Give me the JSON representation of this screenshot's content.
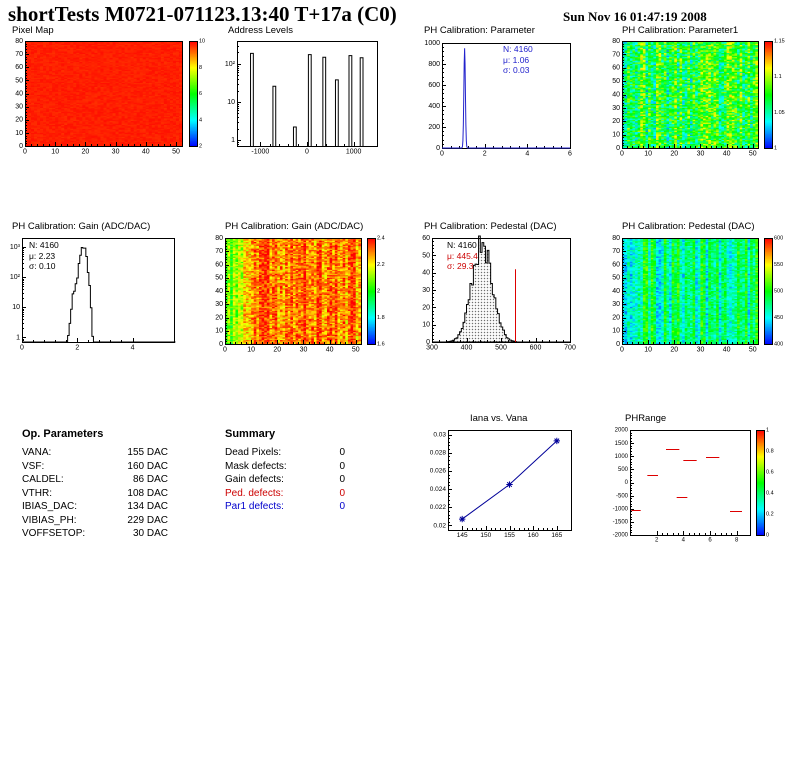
{
  "header": {
    "title": "shortTests M0721-071123.13:40 T+17a (C0)",
    "date": "Sun Nov 16 01:47:19 2008"
  },
  "op_parameters": {
    "title": "Op. Parameters",
    "rows": [
      {
        "label": "VANA:",
        "value": "155 DAC"
      },
      {
        "label": "VSF:",
        "value": "160 DAC"
      },
      {
        "label": "CALDEL:",
        "value": "86 DAC"
      },
      {
        "label": "VTHR:",
        "value": "108 DAC"
      },
      {
        "label": "IBIAS_DAC:",
        "value": "134 DAC"
      },
      {
        "label": "VIBIAS_PH:",
        "value": "229 DAC"
      },
      {
        "label": "VOFFSETOP:",
        "value": "30 DAC"
      }
    ]
  },
  "summary": {
    "title": "Summary",
    "rows": [
      {
        "label": "Dead Pixels:",
        "value": "0",
        "color": "#000000"
      },
      {
        "label": "Mask defects:",
        "value": "0",
        "color": "#000000"
      },
      {
        "label": "Gain defects:",
        "value": "0",
        "color": "#000000"
      },
      {
        "label": "Ped. defects:",
        "value": "0",
        "color": "#cc0000"
      },
      {
        "label": "Par1 defects:",
        "value": "0",
        "color": "#0000cc"
      }
    ]
  },
  "chart_data": [
    {
      "type": "heatmap",
      "title": "Pixel Map",
      "x_range": [
        0,
        52
      ],
      "y_range": [
        0,
        80
      ],
      "x_ticks": [
        0,
        10,
        20,
        30,
        40,
        50
      ],
      "y_ticks": [
        0,
        10,
        20,
        30,
        40,
        50,
        60,
        70,
        80
      ],
      "colorbar_labels": [
        "10",
        "8",
        "6",
        "4",
        "2"
      ],
      "map": {
        "seed": 11,
        "mean": 0.97,
        "column_variation": 0.0,
        "pixel_noise": 0.015
      }
    },
    {
      "type": "histogram",
      "title": "Address Levels",
      "x_range": [
        -1500,
        1500
      ],
      "y_range": [
        0.7,
        400
      ],
      "y_log": true,
      "x_ticks": [
        -1000,
        0,
        1000
      ],
      "y_ticks": [
        1,
        10,
        100
      ],
      "y_tick_labels": [
        "1",
        "10",
        "10²"
      ],
      "spikes": [
        {
          "x": -1180,
          "h": 190
        },
        {
          "x": -700,
          "h": 26
        },
        {
          "x": -260,
          "h": 2.2
        },
        {
          "x": 60,
          "h": 175
        },
        {
          "x": 370,
          "h": 150
        },
        {
          "x": 640,
          "h": 38
        },
        {
          "x": 930,
          "h": 165
        },
        {
          "x": 1170,
          "h": 145
        }
      ]
    },
    {
      "type": "histogram",
      "title": "PH Calibration: Parameter",
      "x_range": [
        0,
        6
      ],
      "y_range": [
        0,
        1000
      ],
      "x_ticks": [
        0,
        2,
        4,
        6
      ],
      "y_ticks": [
        0,
        200,
        400,
        600,
        800,
        1000
      ],
      "color": "#2222cc",
      "gauss": {
        "mu": 1.06,
        "sigma": 0.035,
        "peak": 950
      },
      "stats": {
        "lines": [
          {
            "text": "N: 4160",
            "color": "#2222cc"
          },
          {
            "text": "μ: 1.06",
            "color": "#2222cc"
          },
          {
            "text": "σ: 0.03",
            "color": "#2222cc"
          }
        ]
      }
    },
    {
      "type": "heatmap",
      "title": "PH Calibration: Parameter1",
      "x_range": [
        0,
        52
      ],
      "y_range": [
        0,
        80
      ],
      "x_ticks": [
        0,
        10,
        20,
        30,
        40,
        50
      ],
      "y_ticks": [
        0,
        10,
        20,
        30,
        40,
        50,
        60,
        70,
        80
      ],
      "colorbar_labels": [
        "1.15",
        "1.1",
        "1.05",
        "1"
      ],
      "map": {
        "seed": 23,
        "mean": 0.47,
        "column_variation": 0.14,
        "pixel_noise": 0.2
      }
    },
    {
      "type": "histogram",
      "title": "PH Calibration: Gain (ADC/DAC)",
      "x_range": [
        0,
        5.5
      ],
      "y_range": [
        0.7,
        2000
      ],
      "y_log": true,
      "x_ticks": [
        0,
        2,
        4
      ],
      "y_ticks": [
        1,
        10,
        100,
        1000
      ],
      "y_tick_labels": [
        "1",
        "10",
        "10²",
        "10³"
      ],
      "gauss": {
        "mu": 2.23,
        "sigma": 0.09,
        "peak": 900,
        "shoulder_mu": 2.03,
        "shoulder_sigma": 0.12,
        "shoulder_peak": 70,
        "noise": 0.6,
        "bin_width": 0.055,
        "seed": 5
      },
      "stats": {
        "lines": [
          {
            "text": "N: 4160",
            "color": "#000000"
          },
          {
            "text": "μ: 2.23",
            "color": "#000000"
          },
          {
            "text": "σ: 0.10",
            "color": "#000000"
          }
        ]
      }
    },
    {
      "type": "heatmap",
      "title": "PH Calibration: Gain (ADC/DAC)",
      "x_range": [
        0,
        52
      ],
      "y_range": [
        0,
        80
      ],
      "x_ticks": [
        0,
        10,
        20,
        30,
        40,
        50
      ],
      "y_ticks": [
        0,
        10,
        20,
        30,
        40,
        50,
        60,
        70,
        80
      ],
      "colorbar_labels": [
        "2.4",
        "2.2",
        "2",
        "1.8",
        "1.6"
      ],
      "map": {
        "seed": 37,
        "mean": 0.88,
        "column_variation": 0.08,
        "pixel_noise": 0.12,
        "ramp_from": 0.55,
        "ramp_cols": 12
      }
    },
    {
      "type": "histogram",
      "title": "PH Calibration: Pedestal (DAC)",
      "x_range": [
        300,
        700
      ],
      "y_range": [
        0,
        60
      ],
      "x_ticks": [
        300,
        400,
        500,
        600,
        700
      ],
      "y_ticks": [
        0,
        10,
        20,
        30,
        40,
        50,
        60
      ],
      "gauss": {
        "mu": 445.4,
        "sigma": 29.3,
        "peak": 57,
        "noise": 0.3,
        "bin_width": 5,
        "seed": 9
      },
      "range_line": {
        "x": 540,
        "height": 42,
        "color": "#dd0000"
      },
      "stats": {
        "lines": [
          {
            "text": "N: 4160",
            "color": "#000000"
          },
          {
            "text": "μ: 445.4",
            "color": "#cc0000"
          },
          {
            "text": "σ: 29.3",
            "color": "#cc0000"
          }
        ]
      }
    },
    {
      "type": "heatmap",
      "title": "PH Calibration: Pedestal (DAC)",
      "x_range": [
        0,
        52
      ],
      "y_range": [
        0,
        80
      ],
      "x_ticks": [
        0,
        10,
        20,
        30,
        40,
        50
      ],
      "y_ticks": [
        0,
        10,
        20,
        30,
        40,
        50,
        60,
        70,
        80
      ],
      "colorbar_labels": [
        "600",
        "550",
        "500",
        "450",
        "400"
      ],
      "map": {
        "seed": 51,
        "mean": 0.37,
        "column_variation": 0.17,
        "pixel_noise": 0.11
      }
    },
    {
      "type": "line",
      "title": "Iana vs. Vana",
      "x": [
        145,
        155,
        165
      ],
      "y": [
        0.0207,
        0.0245,
        0.0293
      ],
      "x_range": [
        142,
        168
      ],
      "y_range": [
        0.0195,
        0.0305
      ],
      "x_ticks": [
        145,
        150,
        155,
        160,
        165
      ],
      "y_ticks": [
        0.02,
        0.022,
        0.024,
        0.026,
        0.028,
        0.03
      ],
      "y_tick_labels": [
        "0.02",
        "0.022",
        "0.024",
        "0.026",
        "0.028",
        "0.03"
      ],
      "color": "#000099",
      "marker": "star"
    },
    {
      "type": "scatter",
      "title": "PHRange",
      "x_range": [
        0,
        9
      ],
      "y_range": [
        -2000,
        2000
      ],
      "x_ticks": [
        2,
        4,
        6,
        8
      ],
      "y_ticks": [
        -2000,
        -1500,
        -1000,
        -500,
        0,
        500,
        1000,
        1500,
        2000
      ],
      "color": "#dd0000",
      "colorbar_labels": [
        "1",
        "0.8",
        "0.6",
        "0.4",
        "0.2",
        "0"
      ],
      "segments": [
        {
          "x1": 0.1,
          "x2": 0.8,
          "y": -1050
        },
        {
          "x1": 1.3,
          "x2": 2.1,
          "y": 270
        },
        {
          "x1": 2.7,
          "x2": 3.7,
          "y": 1260
        },
        {
          "x1": 4.0,
          "x2": 5.0,
          "y": 860
        },
        {
          "x1": 3.5,
          "x2": 4.3,
          "y": -560
        },
        {
          "x1": 5.7,
          "x2": 6.7,
          "y": 960
        },
        {
          "x1": 7.5,
          "x2": 8.4,
          "y": -1090
        }
      ]
    }
  ]
}
